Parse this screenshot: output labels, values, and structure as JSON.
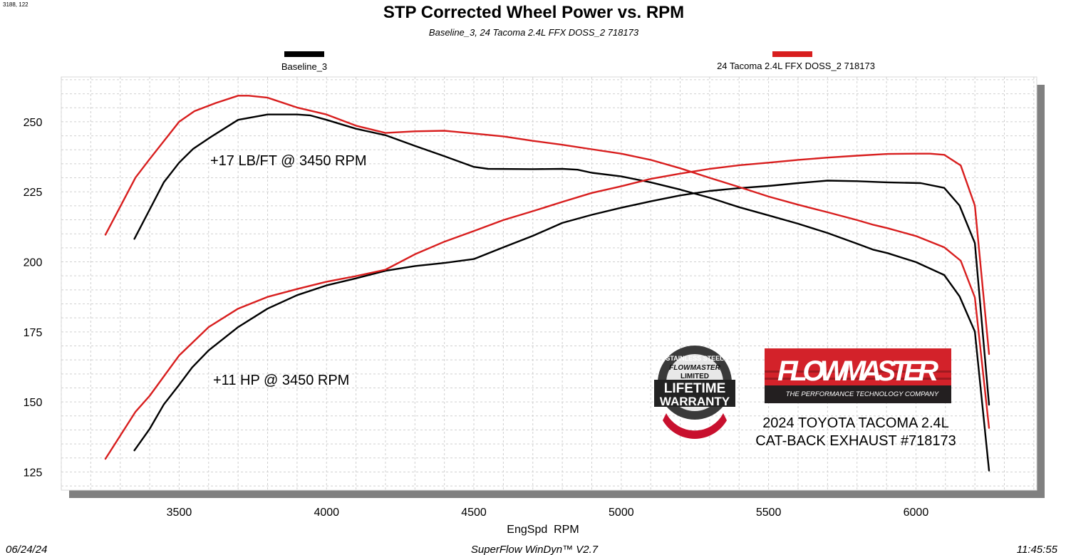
{
  "corner_readout": "3188, 122",
  "footer": {
    "date": "06/24/24",
    "software": "SuperFlow WinDyn™ V2.7",
    "time": "11:45:55"
  },
  "annotations": {
    "torque_gain": "+17 LB/FT @ 3450 RPM",
    "hp_gain": "+11 HP @ 3450 RPM",
    "vehicle_line1": "2024 TOYOTA TACOMA 2.4L",
    "vehicle_line2": "CAT-BACK EXHAUST #718173"
  },
  "logos": {
    "warranty": [
      "STAINLESS STEEL",
      "FLOWMASTER",
      "LIMITED",
      "LIFETIME",
      "WARRANTY"
    ],
    "brand": "FLOWMASTER",
    "brand_tagline": "THE PERFORMANCE TECHNOLOGY COMPANY"
  },
  "colors": {
    "baseline": "#000000",
    "modified": "#d81e1e",
    "annotation": "#e0242c",
    "shadow": "#808080",
    "grid": "#d0d0d0"
  },
  "chart_data": {
    "type": "line",
    "title": "STP Corrected Wheel Power vs. RPM",
    "subtitle": "Baseline_3, 24 Tacoma 2.4L FFX DOSS_2 718173",
    "xlabel": "EngSpd  RPM",
    "ylabel": "",
    "xlim": [
      3100,
      6410
    ],
    "ylim": [
      118.5,
      266
    ],
    "xticks": [
      3500,
      4000,
      4500,
      5000,
      5500,
      6000
    ],
    "yticks": [
      125,
      150,
      175,
      200,
      225,
      250
    ],
    "grid": true,
    "legend": {
      "placement": "top",
      "entries": [
        {
          "name": "Baseline_3",
          "color": "#000000"
        },
        {
          "name": "24 Tacoma 2.4L FFX DOSS_2 718173",
          "color": "#d81e1e"
        }
      ]
    },
    "series": [
      {
        "name": "Baseline_3",
        "color": "#000000",
        "points": [
          [
            3348,
            208.2
          ],
          [
            3400,
            218.7
          ],
          [
            3448,
            228.4
          ],
          [
            3500,
            235.4
          ],
          [
            3548,
            240.4
          ],
          [
            3608,
            244.6
          ],
          [
            3700,
            250.7
          ],
          [
            3800,
            252.6
          ],
          [
            3900,
            252.6
          ],
          [
            3944,
            252.3
          ],
          [
            4000,
            250.7
          ],
          [
            4100,
            247.5
          ],
          [
            4200,
            245.2
          ],
          [
            4300,
            241.4
          ],
          [
            4400,
            237.7
          ],
          [
            4500,
            233.9
          ],
          [
            4548,
            233.2
          ],
          [
            4700,
            233.1
          ],
          [
            4800,
            233.2
          ],
          [
            4852,
            232.9
          ],
          [
            4900,
            231.8
          ],
          [
            5000,
            230.5
          ],
          [
            5100,
            228.4
          ],
          [
            5200,
            225.8
          ],
          [
            5300,
            222.9
          ],
          [
            5400,
            219.5
          ],
          [
            5500,
            216.6
          ],
          [
            5600,
            213.6
          ],
          [
            5700,
            210.3
          ],
          [
            5800,
            206.5
          ],
          [
            5856,
            204.3
          ],
          [
            5904,
            203.1
          ],
          [
            6000,
            199.9
          ],
          [
            6096,
            195.3
          ],
          [
            6148,
            187.7
          ],
          [
            6200,
            175.1
          ],
          [
            6248,
            125.5
          ]
        ]
      },
      {
        "name": "Baseline_3",
        "color": "#000000",
        "points": [
          [
            3348,
            132.7
          ],
          [
            3400,
            140.4
          ],
          [
            3448,
            149.1
          ],
          [
            3500,
            156.1
          ],
          [
            3544,
            162.3
          ],
          [
            3600,
            168.4
          ],
          [
            3700,
            176.7
          ],
          [
            3800,
            183.3
          ],
          [
            3900,
            188.1
          ],
          [
            4000,
            191.6
          ],
          [
            4100,
            194.1
          ],
          [
            4200,
            196.8
          ],
          [
            4300,
            198.5
          ],
          [
            4400,
            199.6
          ],
          [
            4500,
            201.0
          ],
          [
            4600,
            205.2
          ],
          [
            4700,
            209.3
          ],
          [
            4800,
            213.9
          ],
          [
            4900,
            216.8
          ],
          [
            5000,
            219.3
          ],
          [
            5100,
            221.6
          ],
          [
            5200,
            223.7
          ],
          [
            5300,
            225.3
          ],
          [
            5400,
            226.3
          ],
          [
            5500,
            227.1
          ],
          [
            5600,
            228.1
          ],
          [
            5700,
            229.0
          ],
          [
            5800,
            228.8
          ],
          [
            5900,
            228.4
          ],
          [
            6016,
            228.1
          ],
          [
            6096,
            226.4
          ],
          [
            6148,
            220.1
          ],
          [
            6200,
            206.7
          ],
          [
            6248,
            149.0
          ]
        ]
      },
      {
        "name": "24 Tacoma 2.4L FFX DOSS_2 718173",
        "color": "#d81e1e",
        "points": [
          [
            3250,
            209.7
          ],
          [
            3352,
            230.1
          ],
          [
            3400,
            236.7
          ],
          [
            3500,
            250.0
          ],
          [
            3552,
            253.8
          ],
          [
            3624,
            256.7
          ],
          [
            3700,
            259.3
          ],
          [
            3736,
            259.3
          ],
          [
            3800,
            258.6
          ],
          [
            3900,
            255.1
          ],
          [
            4000,
            252.6
          ],
          [
            4100,
            248.6
          ],
          [
            4200,
            246.0
          ],
          [
            4300,
            246.6
          ],
          [
            4400,
            246.8
          ],
          [
            4500,
            245.8
          ],
          [
            4600,
            244.8
          ],
          [
            4700,
            243.2
          ],
          [
            4800,
            241.8
          ],
          [
            4900,
            240.2
          ],
          [
            5000,
            238.6
          ],
          [
            5100,
            236.4
          ],
          [
            5200,
            233.4
          ],
          [
            5300,
            230.0
          ],
          [
            5400,
            226.7
          ],
          [
            5500,
            223.3
          ],
          [
            5600,
            220.4
          ],
          [
            5700,
            217.7
          ],
          [
            5800,
            214.9
          ],
          [
            5856,
            213.2
          ],
          [
            5904,
            212.0
          ],
          [
            6000,
            209.2
          ],
          [
            6096,
            205.2
          ],
          [
            6152,
            200.4
          ],
          [
            6200,
            187.3
          ],
          [
            6248,
            140.7
          ]
        ]
      },
      {
        "name": "24 Tacoma 2.4L FFX DOSS_2 718173",
        "color": "#d81e1e",
        "points": [
          [
            3250,
            129.7
          ],
          [
            3352,
            146.5
          ],
          [
            3400,
            152.2
          ],
          [
            3500,
            166.6
          ],
          [
            3600,
            176.7
          ],
          [
            3700,
            183.3
          ],
          [
            3800,
            187.5
          ],
          [
            3900,
            190.3
          ],
          [
            4000,
            192.9
          ],
          [
            4100,
            194.9
          ],
          [
            4200,
            197.2
          ],
          [
            4300,
            202.7
          ],
          [
            4400,
            207.2
          ],
          [
            4500,
            211.0
          ],
          [
            4600,
            214.9
          ],
          [
            4700,
            218.1
          ],
          [
            4800,
            221.4
          ],
          [
            4900,
            224.6
          ],
          [
            5000,
            227.0
          ],
          [
            5100,
            229.6
          ],
          [
            5200,
            231.5
          ],
          [
            5300,
            233.2
          ],
          [
            5400,
            234.5
          ],
          [
            5500,
            235.4
          ],
          [
            5600,
            236.4
          ],
          [
            5700,
            237.2
          ],
          [
            5800,
            237.9
          ],
          [
            5904,
            238.5
          ],
          [
            6000,
            238.6
          ],
          [
            6048,
            238.6
          ],
          [
            6096,
            238.2
          ],
          [
            6152,
            234.4
          ],
          [
            6200,
            220.1
          ],
          [
            6248,
            167.1
          ]
        ]
      }
    ]
  }
}
